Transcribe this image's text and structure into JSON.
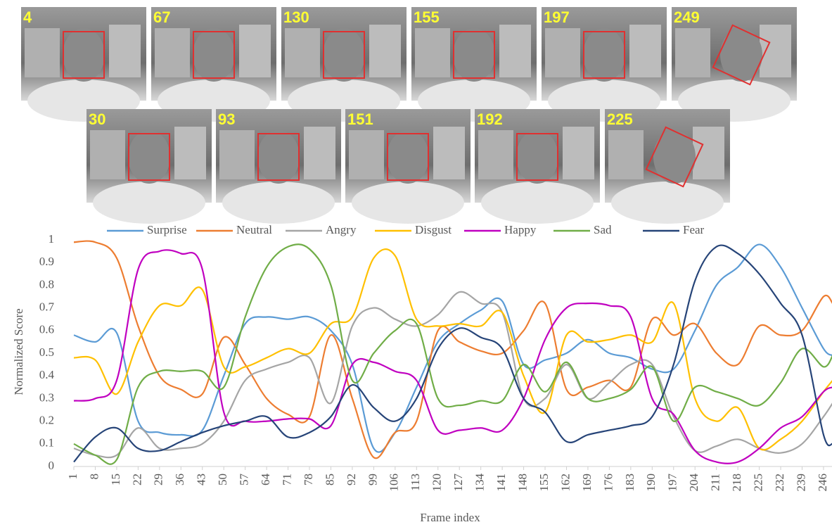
{
  "images": {
    "rows": [
      [
        4,
        67,
        130,
        155,
        197,
        249
      ],
      [
        30,
        93,
        151,
        192,
        225
      ]
    ]
  },
  "chart_data": {
    "type": "line",
    "x_label": "Frame index",
    "y_label": "Normalized Score",
    "x": [
      1,
      8,
      15,
      22,
      29,
      36,
      43,
      50,
      57,
      64,
      71,
      78,
      85,
      92,
      99,
      106,
      113,
      120,
      127,
      134,
      141,
      148,
      155,
      162,
      169,
      176,
      183,
      190,
      197,
      204,
      211,
      218,
      225,
      232,
      239,
      246,
      249
    ],
    "xlim": [
      1,
      249
    ],
    "xticks": [
      1,
      8,
      15,
      22,
      29,
      36,
      43,
      50,
      57,
      64,
      71,
      78,
      85,
      92,
      99,
      106,
      113,
      120,
      127,
      134,
      141,
      148,
      155,
      162,
      169,
      176,
      183,
      190,
      197,
      204,
      211,
      218,
      225,
      232,
      239,
      246
    ],
    "ylim": [
      0,
      1
    ],
    "yticks": [
      0,
      0.1,
      0.2,
      0.3,
      0.4,
      0.5,
      0.6,
      0.7,
      0.8,
      0.9,
      1
    ],
    "legend": "top",
    "series": [
      {
        "name": "Surprise",
        "color": "#5b9bd5",
        "values": [
          0.58,
          0.55,
          0.59,
          0.2,
          0.15,
          0.14,
          0.16,
          0.4,
          0.63,
          0.66,
          0.65,
          0.66,
          0.6,
          0.45,
          0.08,
          0.15,
          0.35,
          0.55,
          0.63,
          0.69,
          0.73,
          0.45,
          0.47,
          0.5,
          0.56,
          0.5,
          0.48,
          0.43,
          0.43,
          0.6,
          0.8,
          0.88,
          0.98,
          0.88,
          0.7,
          0.52,
          0.49
        ]
      },
      {
        "name": "Neutral",
        "color": "#ed7d31",
        "values": [
          0.99,
          0.99,
          0.92,
          0.62,
          0.4,
          0.34,
          0.32,
          0.57,
          0.45,
          0.3,
          0.23,
          0.22,
          0.58,
          0.3,
          0.04,
          0.15,
          0.2,
          0.6,
          0.55,
          0.51,
          0.5,
          0.6,
          0.72,
          0.34,
          0.35,
          0.38,
          0.35,
          0.65,
          0.58,
          0.63,
          0.5,
          0.45,
          0.62,
          0.58,
          0.6,
          0.75,
          0.72
        ]
      },
      {
        "name": "Angry",
        "color": "#a5a5a5",
        "values": [
          0.08,
          0.05,
          0.05,
          0.17,
          0.08,
          0.08,
          0.1,
          0.2,
          0.38,
          0.43,
          0.46,
          0.48,
          0.28,
          0.62,
          0.7,
          0.65,
          0.62,
          0.67,
          0.77,
          0.72,
          0.68,
          0.3,
          0.3,
          0.45,
          0.3,
          0.37,
          0.45,
          0.45,
          0.22,
          0.07,
          0.09,
          0.12,
          0.08,
          0.06,
          0.1,
          0.22,
          0.28
        ]
      },
      {
        "name": "Disgust",
        "color": "#ffc000",
        "values": [
          0.48,
          0.47,
          0.32,
          0.55,
          0.71,
          0.71,
          0.78,
          0.44,
          0.44,
          0.48,
          0.52,
          0.5,
          0.63,
          0.66,
          0.92,
          0.93,
          0.65,
          0.62,
          0.63,
          0.62,
          0.68,
          0.4,
          0.24,
          0.58,
          0.55,
          0.56,
          0.58,
          0.55,
          0.72,
          0.3,
          0.2,
          0.26,
          0.08,
          0.12,
          0.2,
          0.33,
          0.38
        ]
      },
      {
        "name": "Happy",
        "color": "#c000c0",
        "values": [
          0.29,
          0.3,
          0.38,
          0.87,
          0.95,
          0.94,
          0.87,
          0.24,
          0.2,
          0.2,
          0.21,
          0.21,
          0.18,
          0.45,
          0.46,
          0.42,
          0.38,
          0.16,
          0.16,
          0.17,
          0.16,
          0.3,
          0.56,
          0.7,
          0.72,
          0.71,
          0.66,
          0.3,
          0.23,
          0.07,
          0.02,
          0.02,
          0.08,
          0.17,
          0.22,
          0.33,
          0.35
        ]
      },
      {
        "name": "Sad",
        "color": "#70ad47",
        "values": [
          0.1,
          0.05,
          0.03,
          0.35,
          0.42,
          0.42,
          0.42,
          0.35,
          0.66,
          0.88,
          0.97,
          0.96,
          0.8,
          0.38,
          0.5,
          0.6,
          0.63,
          0.3,
          0.27,
          0.29,
          0.29,
          0.45,
          0.33,
          0.46,
          0.3,
          0.3,
          0.34,
          0.44,
          0.2,
          0.35,
          0.33,
          0.3,
          0.27,
          0.37,
          0.52,
          0.44,
          0.49
        ]
      },
      {
        "name": "Fear",
        "color": "#264478",
        "values": [
          0.02,
          0.13,
          0.17,
          0.08,
          0.07,
          0.11,
          0.15,
          0.18,
          0.2,
          0.22,
          0.13,
          0.15,
          0.22,
          0.36,
          0.26,
          0.2,
          0.3,
          0.52,
          0.61,
          0.57,
          0.52,
          0.3,
          0.24,
          0.11,
          0.14,
          0.16,
          0.18,
          0.22,
          0.45,
          0.82,
          0.97,
          0.94,
          0.85,
          0.72,
          0.58,
          0.14,
          0.1
        ]
      }
    ]
  }
}
